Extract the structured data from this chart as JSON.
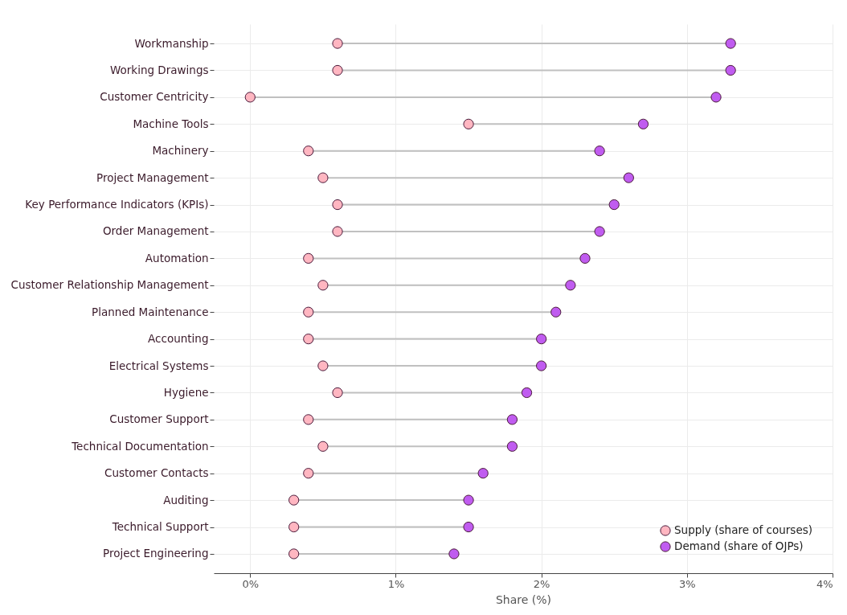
{
  "chart_data": {
    "type": "scatter",
    "orientation": "horizontal",
    "xlabel": "Share (%)",
    "categories": [
      "Workmanship",
      "Working Drawings",
      "Customer Centricity",
      "Machine Tools",
      "Machinery",
      "Project Management",
      "Key Performance Indicators (KPIs)",
      "Order Management",
      "Automation",
      "Customer Relationship Management",
      "Planned Maintenance",
      "Accounting",
      "Electrical Systems",
      "Hygiene",
      "Customer Support",
      "Technical Documentation",
      "Customer Contacts",
      "Auditing",
      "Technical Support",
      "Project Engineering"
    ],
    "series": [
      {
        "name": "Supply (share of courses)",
        "color": "#ffb6c1",
        "values": [
          0.6,
          0.6,
          0,
          1.5,
          0.4,
          0.5,
          0.6,
          0.6,
          0.4,
          0.5,
          0.4,
          0.4,
          0.5,
          0.6,
          0.4,
          0.5,
          0.4,
          0.3,
          0.3,
          0.3
        ]
      },
      {
        "name": "Demand (share of OJPs)",
        "color": "#c05cf0",
        "values": [
          3.3,
          3.3,
          3.2,
          2.7,
          2.4,
          2.6,
          2.5,
          2.4,
          2.3,
          2.2,
          2.1,
          2.0,
          2.0,
          1.9,
          1.8,
          1.8,
          1.6,
          1.5,
          1.5,
          1.4
        ]
      }
    ],
    "xlim": [
      -0.25,
      4
    ],
    "xticks": [
      {
        "value": 0,
        "label": "0%"
      },
      {
        "value": 1,
        "label": "1%"
      },
      {
        "value": 2,
        "label": "2%"
      },
      {
        "value": 3,
        "label": "3%"
      },
      {
        "value": 4,
        "label": "4%"
      }
    ],
    "grid": true,
    "legend": "bottom right",
    "marker": "circle"
  }
}
